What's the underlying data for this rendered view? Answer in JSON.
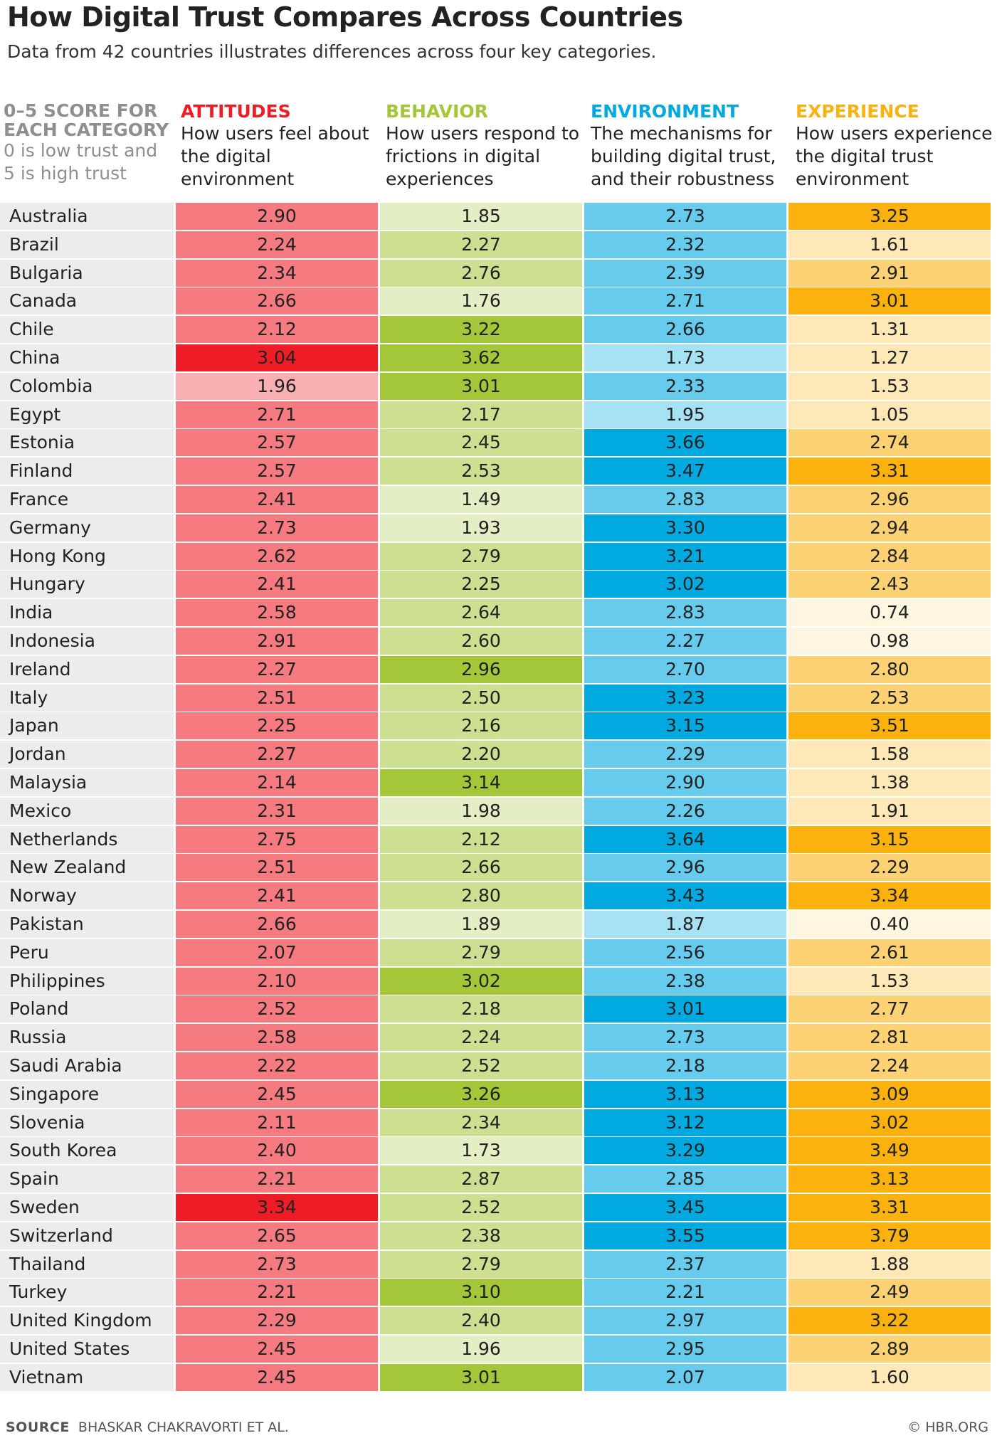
{
  "title": "How Digital Trust Compares Across Countries",
  "subtitle": "Data from 42 countries illustrates differences across four key categories.",
  "legend": {
    "heading": "0–5 SCORE FOR EACH CATEGORY",
    "note": "0 is low trust and 5 is high trust"
  },
  "columns": [
    {
      "key": "attitudes",
      "label": "ATTITUDES",
      "desc": "How users feel about the digital environment",
      "color": "#ee1c25"
    },
    {
      "key": "behavior",
      "label": "BEHAVIOR",
      "desc": "How users respond to frictions in digital experiences",
      "color": "#a4c639"
    },
    {
      "key": "environment",
      "label": "ENVIRONMENT",
      "desc": "The mechanisms for building digital trust, and their robustness",
      "color": "#00a9e0"
    },
    {
      "key": "experience",
      "label": "EXPERIENCE",
      "desc": "How users experience the digital trust environment",
      "color": "#fbb20f"
    }
  ],
  "chart_data": {
    "type": "table",
    "title": "How Digital Trust Compares Across Countries",
    "subtitle": "Data from 42 countries illustrates differences across four key categories.",
    "scale": [
      0,
      5
    ],
    "headers": [
      "ATTITUDES",
      "BEHAVIOR",
      "ENVIRONMENT",
      "EXPERIENCE"
    ],
    "rows": [
      {
        "country": "Australia",
        "values": [
          "2.90",
          "1.85",
          "2.73",
          "3.25"
        ]
      },
      {
        "country": "Brazil",
        "values": [
          "2.24",
          "2.27",
          "2.32",
          "1.61"
        ]
      },
      {
        "country": "Bulgaria",
        "values": [
          "2.34",
          "2.76",
          "2.39",
          "2.91"
        ]
      },
      {
        "country": "Canada",
        "values": [
          "2.66",
          "1.76",
          "2.71",
          "3.01"
        ]
      },
      {
        "country": "Chile",
        "values": [
          "2.12",
          "3.22",
          "2.66",
          "1.31"
        ]
      },
      {
        "country": "China",
        "values": [
          "3.04",
          "3.62",
          "1.73",
          "1.27"
        ]
      },
      {
        "country": "Colombia",
        "values": [
          "1.96",
          "3.01",
          "2.33",
          "1.53"
        ]
      },
      {
        "country": "Egypt",
        "values": [
          "2.71",
          "2.17",
          "1.95",
          "1.05"
        ]
      },
      {
        "country": "Estonia",
        "values": [
          "2.57",
          "2.45",
          "3.66",
          "2.74"
        ]
      },
      {
        "country": "Finland",
        "values": [
          "2.57",
          "2.53",
          "3.47",
          "3.31"
        ]
      },
      {
        "country": "France",
        "values": [
          "2.41",
          "1.49",
          "2.83",
          "2.96"
        ]
      },
      {
        "country": "Germany",
        "values": [
          "2.73",
          "1.93",
          "3.30",
          "2.94"
        ]
      },
      {
        "country": "Hong Kong",
        "values": [
          "2.62",
          "2.79",
          "3.21",
          "2.84"
        ]
      },
      {
        "country": "Hungary",
        "values": [
          "2.41",
          "2.25",
          "3.02",
          "2.43"
        ]
      },
      {
        "country": "India",
        "values": [
          "2.58",
          "2.64",
          "2.83",
          "0.74"
        ]
      },
      {
        "country": "Indonesia",
        "values": [
          "2.91",
          "2.60",
          "2.27",
          "0.98"
        ]
      },
      {
        "country": "Ireland",
        "values": [
          "2.27",
          "2.96",
          "2.70",
          "2.80"
        ]
      },
      {
        "country": "Italy",
        "values": [
          "2.51",
          "2.50",
          "3.23",
          "2.53"
        ]
      },
      {
        "country": "Japan",
        "values": [
          "2.25",
          "2.16",
          "3.15",
          "3.51"
        ]
      },
      {
        "country": "Jordan",
        "values": [
          "2.27",
          "2.20",
          "2.29",
          "1.58"
        ]
      },
      {
        "country": "Malaysia",
        "values": [
          "2.14",
          "3.14",
          "2.90",
          "1.38"
        ]
      },
      {
        "country": "Mexico",
        "values": [
          "2.31",
          "1.98",
          "2.26",
          "1.91"
        ]
      },
      {
        "country": "Netherlands",
        "values": [
          "2.75",
          "2.12",
          "3.64",
          "3.15"
        ]
      },
      {
        "country": "New Zealand",
        "values": [
          "2.51",
          "2.66",
          "2.96",
          "2.29"
        ]
      },
      {
        "country": "Norway",
        "values": [
          "2.41",
          "2.80",
          "3.43",
          "3.34"
        ]
      },
      {
        "country": "Pakistan",
        "values": [
          "2.66",
          "1.89",
          "1.87",
          "0.40"
        ]
      },
      {
        "country": "Peru",
        "values": [
          "2.07",
          "2.79",
          "2.56",
          "2.61"
        ]
      },
      {
        "country": "Philippines",
        "values": [
          "2.10",
          "3.02",
          "2.38",
          "1.53"
        ]
      },
      {
        "country": "Poland",
        "values": [
          "2.52",
          "2.18",
          "3.01",
          "2.77"
        ]
      },
      {
        "country": "Russia",
        "values": [
          "2.58",
          "2.24",
          "2.73",
          "2.81"
        ]
      },
      {
        "country": "Saudi Arabia",
        "values": [
          "2.22",
          "2.52",
          "2.18",
          "2.24"
        ]
      },
      {
        "country": "Singapore",
        "values": [
          "2.45",
          "3.26",
          "3.13",
          "3.09"
        ]
      },
      {
        "country": "Slovenia",
        "values": [
          "2.11",
          "2.34",
          "3.12",
          "3.02"
        ]
      },
      {
        "country": "South Korea",
        "values": [
          "2.40",
          "1.73",
          "3.29",
          "3.49"
        ]
      },
      {
        "country": "Spain",
        "values": [
          "2.21",
          "2.87",
          "2.85",
          "3.13"
        ]
      },
      {
        "country": "Sweden",
        "values": [
          "3.34",
          "2.52",
          "3.45",
          "3.31"
        ]
      },
      {
        "country": "Switzerland",
        "values": [
          "2.65",
          "2.38",
          "3.55",
          "3.79"
        ]
      },
      {
        "country": "Thailand",
        "values": [
          "2.73",
          "2.79",
          "2.37",
          "1.88"
        ]
      },
      {
        "country": "Turkey",
        "values": [
          "2.21",
          "3.10",
          "2.21",
          "2.49"
        ]
      },
      {
        "country": "United Kingdom",
        "values": [
          "2.29",
          "2.40",
          "2.97",
          "3.22"
        ]
      },
      {
        "country": "United States",
        "values": [
          "2.45",
          "1.96",
          "2.95",
          "2.89"
        ]
      },
      {
        "country": "Vietnam",
        "values": [
          "2.45",
          "3.01",
          "2.07",
          "1.60"
        ]
      }
    ]
  },
  "footer": {
    "source_label": "SOURCE",
    "source_text": "BHASKAR CHAKRAVORTI ET AL.",
    "credit": "© HBR.ORG"
  }
}
